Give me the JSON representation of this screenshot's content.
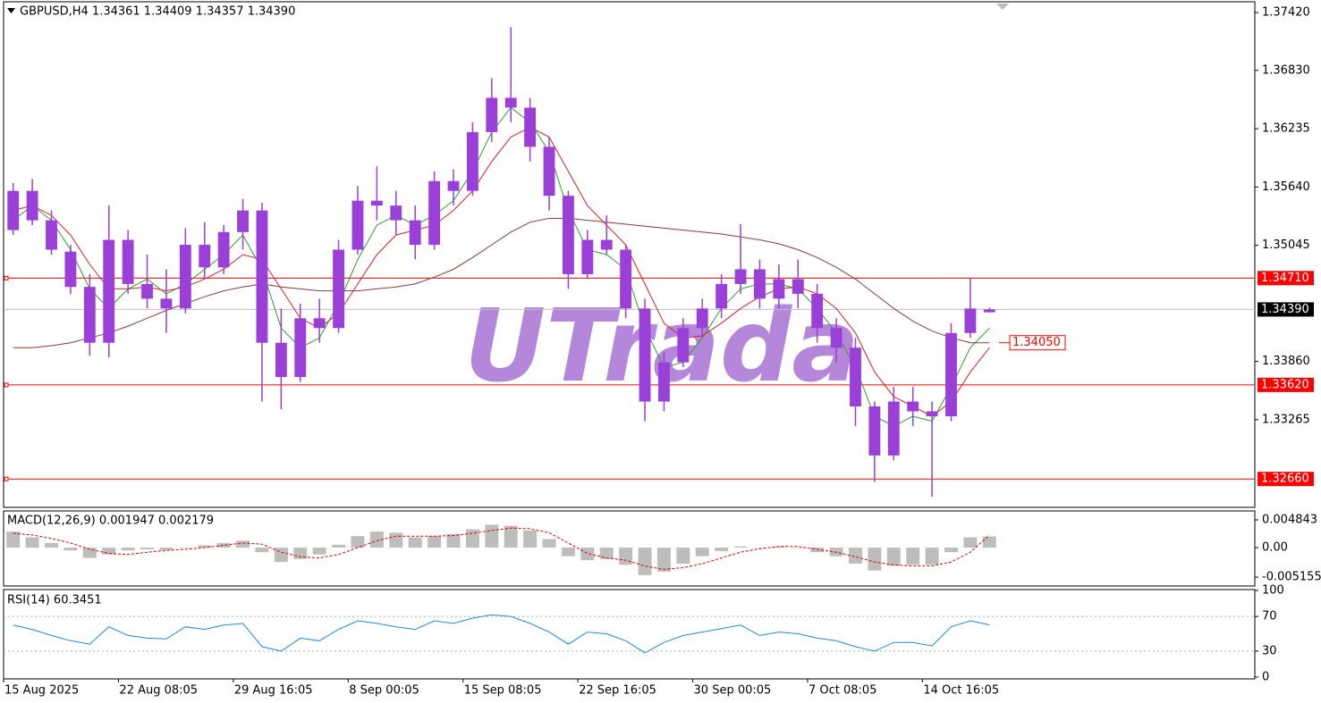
{
  "chart_data": [
    {
      "type": "candlestick",
      "title": "GBPUSD,H4  1.34361 1.34409 1.34357 1.34390",
      "watermark": "UTrada",
      "x": [
        "15 Aug 2025",
        null,
        null,
        null,
        null,
        null,
        "22 Aug 08:05",
        null,
        null,
        null,
        null,
        null,
        "29 Aug 16:05",
        null,
        null,
        null,
        null,
        null,
        "8 Sep 00:05",
        null,
        null,
        null,
        null,
        null,
        "15 Sep 08:05",
        null,
        null,
        null,
        null,
        null,
        "22 Sep 16:05",
        null,
        null,
        null,
        null,
        null,
        "30 Sep 00:05",
        null,
        null,
        null,
        null,
        null,
        "7 Oct 08:05",
        null,
        null,
        null,
        null,
        null,
        "14 Oct 16:05",
        null,
        null,
        null
      ],
      "open": [
        1.352,
        1.356,
        1.353,
        1.3498,
        1.3462,
        1.3405,
        1.351,
        1.3465,
        1.345,
        1.344,
        1.3505,
        1.3482,
        1.3518,
        1.354,
        1.3405,
        1.337,
        1.343,
        1.342,
        1.35,
        1.355,
        1.3545,
        1.353,
        1.3505,
        1.357,
        1.356,
        1.362,
        1.3655,
        1.3645,
        1.3605,
        1.3555,
        1.3475,
        1.351,
        1.35,
        1.344,
        1.3345,
        1.3385,
        1.342,
        1.344,
        1.3465,
        1.348,
        1.345,
        1.347,
        1.3455,
        1.342,
        1.34,
        1.334,
        1.329,
        1.3345,
        1.3335,
        1.333,
        1.3415,
        1.34361
      ],
      "high": [
        1.3568,
        1.3572,
        1.354,
        1.3505,
        1.3475,
        1.3545,
        1.352,
        1.3495,
        1.348,
        1.3522,
        1.3528,
        1.3525,
        1.3552,
        1.3548,
        1.344,
        1.3445,
        1.345,
        1.351,
        1.3565,
        1.3585,
        1.356,
        1.3545,
        1.358,
        1.3582,
        1.363,
        1.3675,
        1.3727,
        1.3655,
        1.3615,
        1.356,
        1.352,
        1.3535,
        1.3505,
        1.345,
        1.3395,
        1.343,
        1.345,
        1.3475,
        1.3526,
        1.349,
        1.3485,
        1.349,
        1.3465,
        1.343,
        1.341,
        1.3345,
        1.336,
        1.336,
        1.3345,
        1.3425,
        1.3471,
        1.34409
      ],
      "low": [
        1.3515,
        1.3525,
        1.3495,
        1.3455,
        1.3392,
        1.339,
        1.3455,
        1.344,
        1.3415,
        1.3435,
        1.347,
        1.3475,
        1.35,
        1.3345,
        1.3337,
        1.3365,
        1.3405,
        1.3415,
        1.3495,
        1.353,
        1.3515,
        1.349,
        1.35,
        1.3545,
        1.3555,
        1.361,
        1.363,
        1.359,
        1.354,
        1.346,
        1.347,
        1.3495,
        1.343,
        1.3325,
        1.3335,
        1.338,
        1.341,
        1.343,
        1.3455,
        1.344,
        1.344,
        1.344,
        1.3405,
        1.3385,
        1.332,
        1.3263,
        1.3285,
        1.332,
        1.3248,
        1.3325,
        1.341,
        1.34357
      ],
      "close": [
        1.356,
        1.353,
        1.35,
        1.3462,
        1.3405,
        1.351,
        1.3465,
        1.345,
        1.344,
        1.3505,
        1.3482,
        1.3518,
        1.354,
        1.3405,
        1.337,
        1.343,
        1.342,
        1.35,
        1.355,
        1.3545,
        1.353,
        1.3505,
        1.357,
        1.356,
        1.362,
        1.3655,
        1.3645,
        1.3605,
        1.3555,
        1.3475,
        1.351,
        1.35,
        1.344,
        1.3345,
        1.3385,
        1.342,
        1.344,
        1.3465,
        1.348,
        1.345,
        1.347,
        1.3455,
        1.342,
        1.34,
        1.334,
        1.329,
        1.3345,
        1.3335,
        1.333,
        1.3415,
        1.344,
        1.3439
      ],
      "color": "#9a3fd8",
      "series": [
        {
          "color": "#2ca02c",
          "values": [
            1.353,
            1.3545,
            1.353,
            1.35,
            1.346,
            1.344,
            1.346,
            1.347,
            1.3455,
            1.3465,
            1.348,
            1.3495,
            1.3515,
            1.348,
            1.342,
            1.34,
            1.341,
            1.3445,
            1.349,
            1.3525,
            1.3535,
            1.3525,
            1.3535,
            1.355,
            1.358,
            1.362,
            1.3645,
            1.363,
            1.36,
            1.354,
            1.35,
            1.3495,
            1.348,
            1.342,
            1.338,
            1.3385,
            1.341,
            1.344,
            1.346,
            1.3465,
            1.3465,
            1.346,
            1.344,
            1.3415,
            1.338,
            1.333,
            1.332,
            1.333,
            1.3325,
            1.336,
            1.34,
            1.342
          ]
        },
        {
          "color": "#dd2020",
          "values": [
            1.354,
            1.3545,
            1.3535,
            1.3515,
            1.3485,
            1.346,
            1.346,
            1.3462,
            1.3458,
            1.3462,
            1.347,
            1.348,
            1.3495,
            1.349,
            1.346,
            1.343,
            1.342,
            1.3435,
            1.3465,
            1.3495,
            1.3515,
            1.352,
            1.3525,
            1.354,
            1.356,
            1.359,
            1.3615,
            1.3625,
            1.3615,
            1.358,
            1.3545,
            1.3525,
            1.3505,
            1.3465,
            1.3425,
            1.341,
            1.3412,
            1.3425,
            1.344,
            1.3452,
            1.346,
            1.3462,
            1.3455,
            1.344,
            1.3415,
            1.3375,
            1.335,
            1.334,
            1.333,
            1.3345,
            1.3375,
            1.34
          ]
        },
        {
          "color": "#8b3a3a",
          "values": [
            1.34,
            1.34,
            1.3402,
            1.3405,
            1.341,
            1.3415,
            1.3422,
            1.343,
            1.3438,
            1.3445,
            1.3452,
            1.3458,
            1.3462,
            1.3465,
            1.3462,
            1.346,
            1.3458,
            1.3458,
            1.3458,
            1.346,
            1.3462,
            1.3465,
            1.3472,
            1.348,
            1.3492,
            1.3505,
            1.3518,
            1.3528,
            1.3532,
            1.3532,
            1.353,
            1.3528,
            1.3526,
            1.3524,
            1.3522,
            1.352,
            1.3518,
            1.3516,
            1.3513,
            1.351,
            1.3506,
            1.35,
            1.3492,
            1.3482,
            1.347,
            1.3455,
            1.344,
            1.3427,
            1.3417,
            1.341,
            1.3405,
            1.3405
          ]
        }
      ],
      "ylim": [
        1.3237,
        1.3753
      ],
      "yticks": [
        {
          "value": 1.3742,
          "label": "1.37420"
        },
        {
          "value": 1.3683,
          "label": "1.36830"
        },
        {
          "value": 1.36235,
          "label": "1.36235"
        },
        {
          "value": 1.3564,
          "label": "1.35640"
        },
        {
          "value": 1.35045,
          "label": "1.35045"
        },
        {
          "value": 1.3386,
          "label": "1.33860"
        },
        {
          "value": 1.33265,
          "label": "1.33265"
        }
      ],
      "levels": [
        {
          "value": 1.3471,
          "label": "1.34710",
          "color": "#ff0000"
        },
        {
          "value": 1.3362,
          "label": "1.33620",
          "color": "#ff0000"
        },
        {
          "value": 1.3266,
          "label": "1.32660",
          "color": "#ff0000"
        }
      ],
      "last": {
        "value": 1.3439,
        "label": "1.34390"
      },
      "ma_value": {
        "value": 1.3405,
        "label": "1.34050"
      }
    },
    {
      "type": "macd",
      "title": "MACD(12,26,9) 0.001947 0.002179",
      "histogram": {
        "color": "#bdbdbd",
        "values": [
          0.0028,
          0.0018,
          0.0008,
          -0.0005,
          -0.0018,
          -0.0012,
          -0.0005,
          -0.0003,
          -0.0004,
          0.0,
          0.0004,
          0.0008,
          0.0012,
          -0.0008,
          -0.0025,
          -0.002,
          -0.0012,
          0.0005,
          0.002,
          0.0028,
          0.0026,
          0.0018,
          0.002,
          0.0024,
          0.0032,
          0.004,
          0.0038,
          0.003,
          0.0015,
          -0.0015,
          -0.0022,
          -0.002,
          -0.003,
          -0.0048,
          -0.0042,
          -0.0028,
          -0.0015,
          -0.0006,
          0.0002,
          0.0,
          0.0002,
          0.0,
          -0.0008,
          -0.0015,
          -0.0028,
          -0.004,
          -0.0032,
          -0.003,
          -0.003,
          -0.0008,
          0.0018,
          0.001947
        ]
      },
      "signal": {
        "color": "#e00000",
        "values": [
          0.0025,
          0.0022,
          0.0016,
          0.0008,
          -0.0003,
          -0.001,
          -0.0012,
          -0.0008,
          -0.0005,
          -0.0003,
          0.0,
          0.0004,
          0.0008,
          0.0006,
          -0.0008,
          -0.0016,
          -0.0018,
          -0.0012,
          0.0,
          0.0012,
          0.002,
          0.002,
          0.002,
          0.0021,
          0.0025,
          0.003,
          0.0034,
          0.0033,
          0.0026,
          0.0008,
          -0.001,
          -0.0018,
          -0.0022,
          -0.0032,
          -0.0038,
          -0.0035,
          -0.0028,
          -0.0018,
          -0.0008,
          -0.0002,
          0.0002,
          0.0002,
          -0.0003,
          -0.0008,
          -0.0016,
          -0.0025,
          -0.003,
          -0.0032,
          -0.0032,
          -0.0025,
          -0.0008,
          0.002179
        ]
      },
      "ylim": [
        -0.0067,
        0.0064
      ],
      "yticks": [
        0.004843,
        {
          "value": 0,
          "label": "0.00"
        },
        -0.005155
      ]
    },
    {
      "type": "rsi",
      "title": "RSI(14) 60.3451",
      "values": [
        60,
        55,
        48,
        42,
        38,
        58,
        48,
        45,
        44,
        58,
        55,
        60,
        62,
        35,
        30,
        45,
        42,
        55,
        65,
        62,
        58,
        55,
        65,
        62,
        68,
        72,
        70,
        62,
        52,
        38,
        52,
        50,
        42,
        28,
        40,
        48,
        52,
        56,
        60,
        48,
        52,
        50,
        45,
        42,
        35,
        30,
        40,
        40,
        36,
        58,
        65,
        60.3451
      ],
      "color": "#1e88e5",
      "ylim": [
        0,
        100
      ],
      "yticks": [
        100,
        70,
        30,
        0
      ],
      "levels": [
        70,
        30
      ]
    }
  ]
}
